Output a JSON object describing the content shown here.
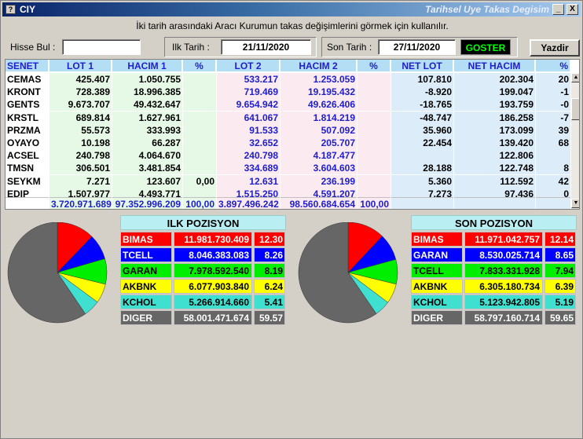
{
  "window": {
    "app_title": "CIY",
    "caption": "Tarihsel Uye Takas Degisim",
    "min_btn": "_",
    "max_btn": "□",
    "close_btn": "X",
    "icon": "?"
  },
  "hint": "İki tarih arasındaki  Aracı Kurumun takas değişimlerini görmek için kullanılır.",
  "filters": {
    "hisse_label": "Hisse Bul :",
    "hisse_value": "",
    "ilk_label": "Ilk Tarih :",
    "ilk_value": "21/11/2020",
    "son_label": "Son Tarih :",
    "son_value": "27/11/2020",
    "goster": "GOSTER",
    "yazdir": "Yazdir"
  },
  "table": {
    "headers": [
      "SENET",
      "LOT 1",
      "HACIM 1",
      "%",
      "LOT 2",
      "HACIM 2",
      "%",
      "NET LOT",
      "NET HACIM",
      "%"
    ],
    "rows": [
      [
        "CEMAS",
        "425.407",
        "1.050.755",
        "",
        "533.217",
        "1.253.059",
        "",
        "107.810",
        "202.304",
        "20"
      ],
      [
        "KRONT",
        "728.389",
        "18.996.385",
        "",
        "719.469",
        "19.195.432",
        "",
        "-8.920",
        "199.047",
        "-1"
      ],
      [
        "GENTS",
        "9.673.707",
        "49.432.647",
        "",
        "9.654.942",
        "49.626.406",
        "",
        "-18.765",
        "193.759",
        "-0"
      ],
      [
        "KRSTL",
        "689.814",
        "1.627.961",
        "",
        "641.067",
        "1.814.219",
        "",
        "-48.747",
        "186.258",
        "-7"
      ],
      [
        "PRZMA",
        "55.573",
        "333.993",
        "",
        "91.533",
        "507.092",
        "",
        "35.960",
        "173.099",
        "39"
      ],
      [
        "OYAYO",
        "10.198",
        "66.287",
        "",
        "32.652",
        "205.707",
        "",
        "22.454",
        "139.420",
        "68"
      ],
      [
        "ACSEL",
        "240.798",
        "4.064.670",
        "",
        "240.798",
        "4.187.477",
        "",
        "",
        "122.806",
        ""
      ],
      [
        "TMSN",
        "306.501",
        "3.481.854",
        "",
        "334.689",
        "3.604.603",
        "",
        "28.188",
        "122.748",
        "8"
      ],
      [
        "SEYKM",
        "7.271",
        "123.607",
        "0,00",
        "12.631",
        "236.199",
        "",
        "5.360",
        "112.592",
        "42"
      ],
      [
        "EDIP",
        "1.507.977",
        "4.493.771",
        "",
        "1.515.250",
        "4.591.207",
        "",
        "7.273",
        "97.436",
        "0"
      ]
    ],
    "totals": [
      "",
      "3.720.971.689",
      "97.352.996.209",
      "100,00",
      "3.897.496.242",
      "98.560.684.654",
      "100,00",
      "",
      "",
      ""
    ]
  },
  "ilk_pozisyon": {
    "title": "ILK POZISYON",
    "rows": [
      {
        "name": "BIMAS",
        "value": "11.981.730.409",
        "pct": "12.30",
        "color": "#ff0000",
        "pct_num": 12.3
      },
      {
        "name": "TCELL",
        "value": "8.046.383.083",
        "pct": "8.26",
        "color": "#0000ff",
        "pct_num": 8.26
      },
      {
        "name": "GARAN",
        "value": "7.978.592.540",
        "pct": "8.19",
        "color": "#00ee00",
        "pct_num": 8.19
      },
      {
        "name": "AKBNK",
        "value": "6.077.903.840",
        "pct": "6.24",
        "color": "#ffff00",
        "pct_num": 6.24
      },
      {
        "name": "KCHOL",
        "value": "5.266.914.660",
        "pct": "5.41",
        "color": "#40e0d0",
        "pct_num": 5.41
      },
      {
        "name": "DIGER",
        "value": "58.001.471.674",
        "pct": "59.57",
        "color": "#666666",
        "pct_num": 59.57
      }
    ]
  },
  "son_pozisyon": {
    "title": "SON POZISYON",
    "rows": [
      {
        "name": "BIMAS",
        "value": "11.971.042.757",
        "pct": "12.14",
        "color": "#ff0000",
        "pct_num": 12.14
      },
      {
        "name": "GARAN",
        "value": "8.530.025.714",
        "pct": "8.65",
        "color": "#0000ff",
        "pct_num": 8.65
      },
      {
        "name": "TCELL",
        "value": "7.833.331.928",
        "pct": "7.94",
        "color": "#00ee00",
        "pct_num": 7.94
      },
      {
        "name": "AKBNK",
        "value": "6.305.180.734",
        "pct": "6.39",
        "color": "#ffff00",
        "pct_num": 6.39
      },
      {
        "name": "KCHOL",
        "value": "5.123.942.805",
        "pct": "5.19",
        "color": "#40e0d0",
        "pct_num": 5.19
      },
      {
        "name": "DIGER",
        "value": "58.797.160.714",
        "pct": "59.65",
        "color": "#666666",
        "pct_num": 59.65
      }
    ]
  }
}
